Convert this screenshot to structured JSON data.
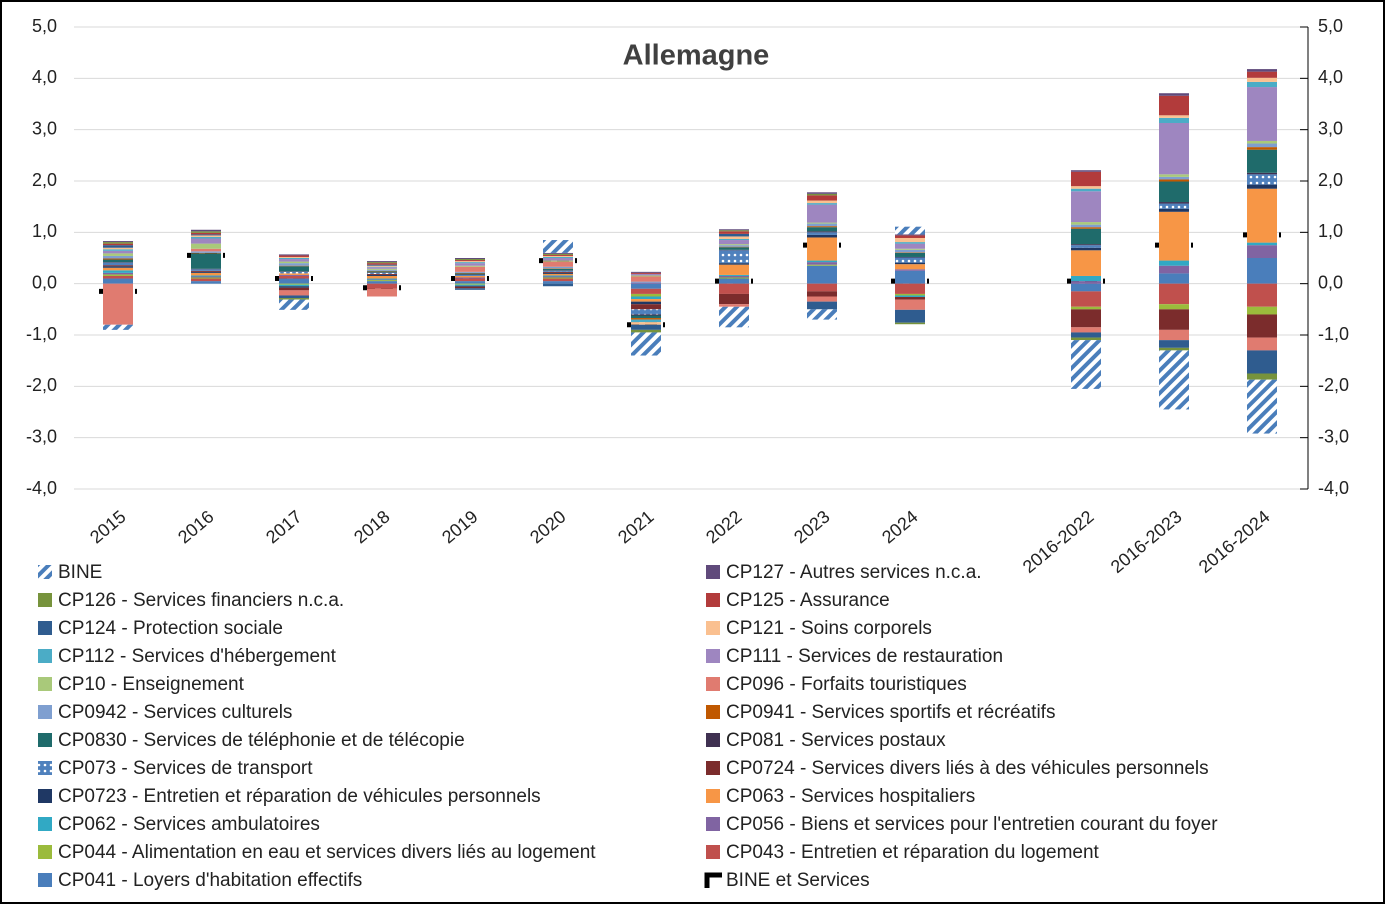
{
  "chart_data": {
    "type": "stacked-bar",
    "title": "Allemagne",
    "categories": [
      "2015",
      "2016",
      "2017",
      "2018",
      "2019",
      "2020",
      "2021",
      "2022",
      "2023",
      "2024",
      null,
      "2016-2022",
      "2016-2023",
      "2016-2024"
    ],
    "ylim": [
      -4,
      5
    ],
    "yticks": [
      {
        "value": -4,
        "label": "-4,0"
      },
      {
        "value": -3,
        "label": "-3,0"
      },
      {
        "value": -2,
        "label": "-2,0"
      },
      {
        "value": -1,
        "label": "-1,0"
      },
      {
        "value": 0,
        "label": "0,0"
      },
      {
        "value": 1,
        "label": "1,0"
      },
      {
        "value": 2,
        "label": "2,0"
      },
      {
        "value": 3,
        "label": "3,0"
      },
      {
        "value": 4,
        "label": "4,0"
      },
      {
        "value": 5,
        "label": "5,0"
      }
    ],
    "y2lim": [
      -4,
      5
    ],
    "y2ticks": [
      {
        "value": -4,
        "label": "-4,0"
      },
      {
        "value": -3,
        "label": "-3,0"
      },
      {
        "value": -2,
        "label": "-2,0"
      },
      {
        "value": -1,
        "label": "-1,0"
      },
      {
        "value": 0,
        "label": "0,0"
      },
      {
        "value": 1,
        "label": "1,0"
      },
      {
        "value": 2,
        "label": "2,0"
      },
      {
        "value": 3,
        "label": "3,0"
      },
      {
        "value": 4,
        "label": "4,0"
      },
      {
        "value": 5,
        "label": "5,0"
      }
    ],
    "grid": true,
    "series": [
      {
        "name": "BINE",
        "color": "#4a7ebb",
        "pattern": "hatch",
        "values": [
          -0.1,
          0,
          -0.2,
          0,
          0,
          0.25,
          -0.45,
          -0.4,
          -0.2,
          0.15,
          null,
          -0.95,
          -1.15,
          -1.05
        ]
      },
      {
        "name": "CP127 - Autres services n.c.a.",
        "color": "#604a7b",
        "values": [
          0.02,
          0.03,
          0.02,
          0.02,
          0.02,
          0.02,
          0.02,
          0.02,
          0.03,
          0.02,
          null,
          0.03,
          0.05,
          0.05
        ]
      },
      {
        "name": "CP126 - Services financiers n.c.a.",
        "color": "#77933c",
        "values": [
          0.03,
          0.03,
          -0.03,
          0.02,
          0.02,
          0.02,
          -0.05,
          0.02,
          0.03,
          -0.03,
          null,
          -0.05,
          -0.05,
          -0.12
        ]
      },
      {
        "name": "CP125 - Assurance",
        "color": "#b23b3b",
        "values": [
          0.03,
          0.03,
          0.03,
          0.03,
          0.02,
          0.02,
          0.02,
          0.05,
          0.1,
          0.05,
          null,
          0.28,
          0.38,
          0.12
        ]
      },
      {
        "name": "CP124 - Protection sociale",
        "color": "#2f5c8f",
        "values": [
          0.05,
          0.02,
          -0.05,
          0.02,
          -0.03,
          -0.05,
          -0.1,
          0.05,
          -0.15,
          -0.25,
          null,
          -0.1,
          -0.15,
          -0.45
        ]
      },
      {
        "name": "CP121 - Soins corporels",
        "color": "#fac090",
        "values": [
          0.03,
          0.03,
          0.02,
          0.02,
          0.02,
          0.02,
          -0.05,
          0.05,
          0.05,
          0.08,
          null,
          0.05,
          0.05,
          0.08
        ]
      },
      {
        "name": "CP112 - Services d'hébergement",
        "color": "#4bacc6",
        "values": [
          0.03,
          0.03,
          0.02,
          0.01,
          0.02,
          0.02,
          -0.05,
          0.02,
          0.03,
          0.03,
          null,
          0.05,
          0.1,
          0.1
        ]
      },
      {
        "name": "CP111 - Services de restauration",
        "color": "#9e86c0",
        "values": [
          0.05,
          0.1,
          0.05,
          0.03,
          0.05,
          0.05,
          0.03,
          0.08,
          0.35,
          0.1,
          null,
          0.6,
          1.0,
          1.05
        ]
      },
      {
        "name": "CP10 - Enseignement",
        "color": "#a9c97a",
        "values": [
          0.05,
          0.1,
          0.03,
          0.02,
          0.02,
          0.02,
          0.02,
          0.02,
          0.02,
          0.02,
          null,
          0.05,
          0.05,
          0.05
        ]
      },
      {
        "name": "CP096 - Forfaits touristiques",
        "color": "#e07b70",
        "values": [
          -0.8,
          0.05,
          -0.1,
          -0.15,
          0.1,
          0.1,
          0.1,
          -0.05,
          -0.1,
          -0.2,
          null,
          -0.1,
          -0.2,
          -0.25
        ]
      },
      {
        "name": "CP0942 - Services culturels",
        "color": "#7f9fd0",
        "values": [
          0.05,
          0.03,
          0.05,
          0.02,
          0.02,
          0.03,
          0.02,
          0.03,
          0.05,
          0.05,
          null,
          0.05,
          0.05,
          0.07
        ]
      },
      {
        "name": "CP0941 - Services sportifs et récréatifs",
        "color": "#c05800",
        "values": [
          0.02,
          0.01,
          0.01,
          0.01,
          0.01,
          0.01,
          -0.03,
          0.01,
          0.02,
          0.01,
          null,
          0.03,
          0.04,
          0.05
        ]
      },
      {
        "name": "CP0830 - Services de téléphonie et de télécopie",
        "color": "#1f6b6b",
        "values": [
          0.05,
          0.3,
          0.1,
          0.02,
          0.02,
          0.03,
          -0.05,
          0.05,
          0.08,
          0.08,
          null,
          0.3,
          0.4,
          0.45
        ]
      },
      {
        "name": "CP081 - Services postaux",
        "color": "#3f3151",
        "values": [
          0.01,
          0.01,
          0.01,
          0.01,
          0.01,
          0.01,
          -0.02,
          0.01,
          0.02,
          0.01,
          null,
          0.02,
          0.03,
          0.03
        ]
      },
      {
        "name": "CP073 - Services de transport",
        "color": "#4f81bd",
        "pattern": "dots",
        "values": [
          0.05,
          0.03,
          0.03,
          0.02,
          0.02,
          0.02,
          -0.1,
          0.25,
          0.05,
          0.1,
          null,
          0.05,
          0.1,
          0.2
        ]
      },
      {
        "name": "CP0724 - Services divers liés à des véhicules personnels",
        "color": "#7b2c2c",
        "values": [
          0.02,
          0.02,
          -0.05,
          0.02,
          -0.03,
          0.02,
          -0.1,
          -0.2,
          -0.1,
          -0.05,
          null,
          -0.35,
          -0.4,
          -0.45
        ]
      },
      {
        "name": "CP0723 - Entretien et réparation de véhicules personnels",
        "color": "#1f3864",
        "values": [
          0.03,
          0.02,
          -0.03,
          0.02,
          -0.02,
          0.02,
          -0.05,
          0.03,
          0.05,
          0.03,
          null,
          0.05,
          0.06,
          0.08
        ]
      },
      {
        "name": "CP063 - Services hospitaliers",
        "color": "#f79646",
        "values": [
          0.05,
          0.05,
          0.03,
          0.05,
          0.03,
          0.03,
          -0.05,
          0.2,
          0.45,
          0.1,
          null,
          0.5,
          0.95,
          1.05
        ]
      },
      {
        "name": "CP062 - Services ambulatoires",
        "color": "#31a9c4",
        "values": [
          0.05,
          0.02,
          -0.03,
          0.02,
          -0.02,
          0.02,
          -0.05,
          0.02,
          0.03,
          -0.03,
          null,
          0.1,
          0.1,
          0.05
        ]
      },
      {
        "name": "CP056 - Biens et services pour l'entretien courant du foyer",
        "color": "#8064a2",
        "values": [
          0.03,
          0.02,
          0.02,
          0.01,
          0.02,
          0.02,
          0.02,
          0.03,
          0.05,
          0.03,
          null,
          0.05,
          0.15,
          0.25
        ]
      },
      {
        "name": "CP044 - Alimentation en eau et services divers liés au logement",
        "color": "#9bbb3c",
        "values": [
          0.03,
          0.02,
          -0.02,
          0.02,
          -0.02,
          0.02,
          -0.05,
          0.02,
          0.02,
          -0.03,
          null,
          -0.05,
          -0.1,
          -0.15
        ]
      },
      {
        "name": "CP043 - Entretien et réparation du logement",
        "color": "#c0504d",
        "values": [
          0.05,
          0.05,
          0.05,
          -0.1,
          0.05,
          0.05,
          -0.1,
          -0.2,
          -0.15,
          -0.2,
          null,
          -0.3,
          -0.4,
          -0.45
        ]
      },
      {
        "name": "CP041 - Loyers d'habitation effectifs",
        "color": "#4a7ebb",
        "values": [
          0.1,
          0.05,
          0.1,
          0.05,
          0.05,
          0.05,
          -0.1,
          0.1,
          0.35,
          0.25,
          null,
          -0.15,
          0.2,
          0.5
        ]
      },
      {
        "name": "BINE et Services",
        "color": "#000000",
        "style": "dash",
        "values": [
          -0.15,
          0.55,
          0.1,
          -0.08,
          0.1,
          0.45,
          -0.8,
          0.05,
          0.75,
          0.05,
          null,
          0.05,
          0.75,
          0.95
        ]
      }
    ]
  }
}
